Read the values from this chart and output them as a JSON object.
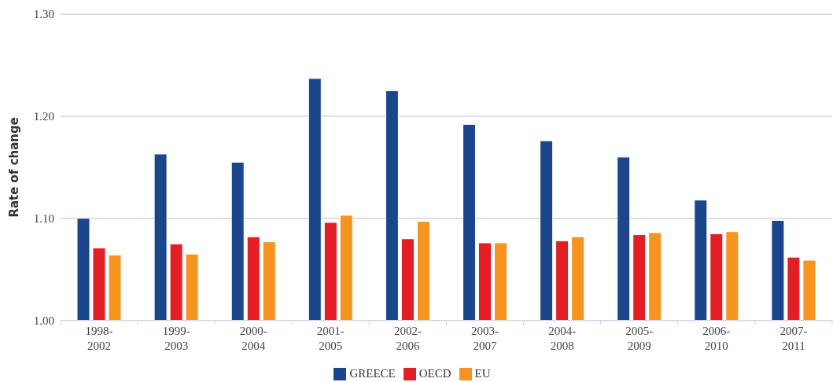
{
  "chart_data": {
    "type": "bar",
    "ylabel": "Rate of change",
    "categories": [
      "1998-2002",
      "1999-2003",
      "2000-2004",
      "2001-2005",
      "2002-2006",
      "2003-2007",
      "2004-2008",
      "2005-2009",
      "2006-2010",
      "2007-2011"
    ],
    "series": [
      {
        "name": "GREECE",
        "color": "#1b468b",
        "values": [
          1.1,
          1.163,
          1.155,
          1.237,
          1.225,
          1.192,
          1.176,
          1.16,
          1.118,
          1.098
        ]
      },
      {
        "name": "OECD",
        "color": "#e31f26",
        "values": [
          1.071,
          1.075,
          1.082,
          1.096,
          1.08,
          1.076,
          1.078,
          1.084,
          1.085,
          1.062
        ]
      },
      {
        "name": "EU",
        "color": "#f7941f",
        "values": [
          1.064,
          1.065,
          1.077,
          1.103,
          1.097,
          1.076,
          1.082,
          1.086,
          1.087,
          1.059
        ]
      }
    ],
    "ylim": [
      1.0,
      1.3
    ],
    "yticks": [
      {
        "value": 1.0,
        "label": "1.00"
      },
      {
        "value": 1.1,
        "label": "1.10"
      },
      {
        "value": 1.2,
        "label": "1.20"
      },
      {
        "value": 1.3,
        "label": "1.30"
      }
    ],
    "grid": "y",
    "legend": "bottom"
  }
}
